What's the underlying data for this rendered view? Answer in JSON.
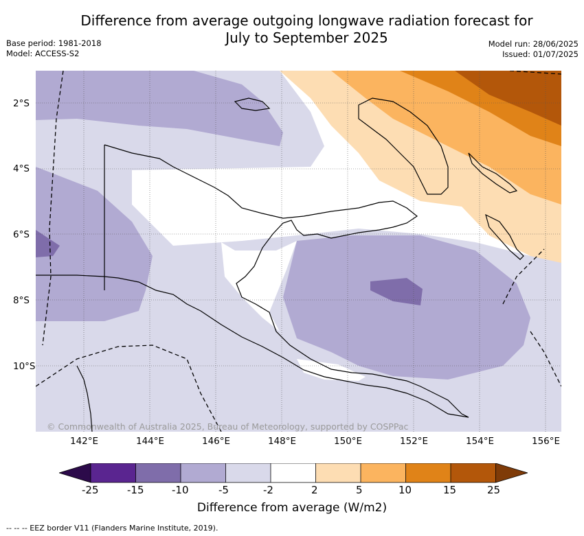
{
  "header": {
    "title_line1": "Difference from average outgoing longwave radiation forecast for",
    "title_line2": "July to September 2025",
    "base_period": "Base period: 1981-2018",
    "model": "Model: ACCESS-S2",
    "model_run": "Model run: 28/06/2025",
    "issued": "Issued: 01/07/2025"
  },
  "map": {
    "lat_ticks": [
      "2°S",
      "4°S",
      "6°S",
      "8°S",
      "10°S"
    ],
    "lon_ticks": [
      "142°E",
      "144°E",
      "146°E",
      "148°E",
      "150°E",
      "152°E",
      "154°E",
      "156°E"
    ],
    "copyright": "© Commonwealth of Australia 2025, Bureau of Meteorology, supported by COSPPac"
  },
  "colorbar": {
    "labels": [
      "-25",
      "-15",
      "-10",
      "-5",
      "-2",
      "2",
      "5",
      "10",
      "15",
      "25"
    ],
    "colors": [
      "#2c0a4a",
      "#5a2590",
      "#7f6daa",
      "#b1aad2",
      "#d9d9ea",
      "#ffffff",
      "#fdddb3",
      "#fbb45f",
      "#e08318",
      "#b3570a",
      "#7f3b08"
    ],
    "title": "Difference from average (W/m2)"
  },
  "footnote": "-- -- -- EEZ border V11 (Flanders Marine Institute, 2019)."
}
